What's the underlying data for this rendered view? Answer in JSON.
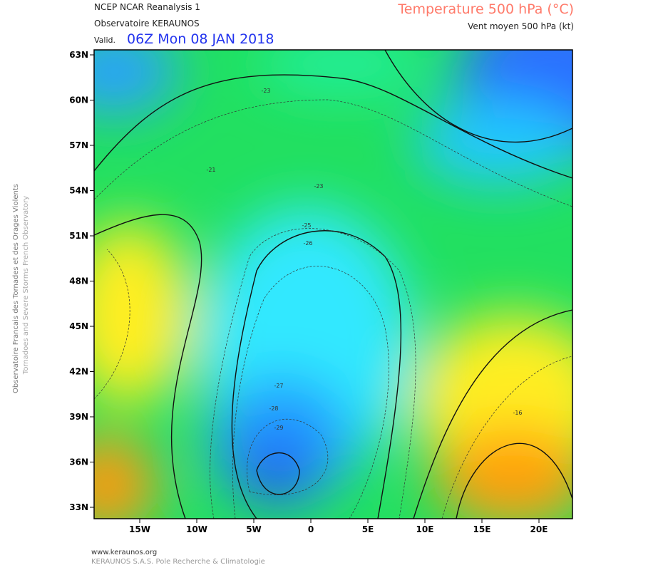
{
  "header": {
    "source": "NCEP NCAR Reanalysis 1",
    "observatory": "Observatoire KERAUNOS",
    "valid_prefix": "Valid.",
    "valid": "06Z Mon 08 JAN 2018",
    "title": "Temperature 500 hPa (°C)",
    "subtitle": "Vent moyen 500 hPa (kt)"
  },
  "map": {
    "lat_labels": [
      "63N",
      "60N",
      "57N",
      "54N",
      "51N",
      "48N",
      "45N",
      "42N",
      "39N",
      "36N",
      "33N"
    ],
    "lon_labels": [
      "15W",
      "10W",
      "5W",
      "0",
      "5E",
      "10E",
      "15E",
      "20E"
    ],
    "contour_labels": [
      -23,
      -21,
      -23,
      -25,
      -26,
      -27,
      -28,
      -29,
      -16
    ]
  },
  "side": {
    "line1": "Observatoire Francais des Tornades et des Orages Violents",
    "line2": "Tornadoes and Severe Storms French Observatory"
  },
  "footer": {
    "url": "www.keraunos.org",
    "company": "KERAUNOS S.A.S. Pole Recherche & Climatologie"
  }
}
